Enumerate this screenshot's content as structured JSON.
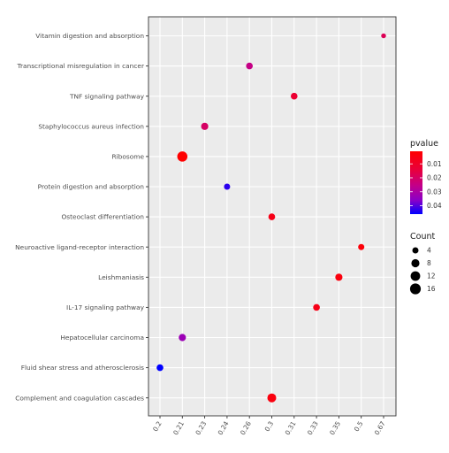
{
  "chart_data": {
    "type": "scatter",
    "title": "",
    "xlabel": "",
    "ylabel": "",
    "x_categories": [
      "0.2",
      "0.21",
      "0.23",
      "0.24",
      "0.26",
      "0.3",
      "0.31",
      "0.33",
      "0.35",
      "0.5",
      "0.67"
    ],
    "y_categories": [
      "Vitamin digestion and absorption",
      "Transcriptional misregulation in cancer",
      "TNF signaling pathway",
      "Staphylococcus aureus infection",
      "Ribosome",
      "Protein digestion and absorption",
      "Osteoclast differentiation",
      "Neuroactive ligand-receptor interaction",
      "Leishmaniasis",
      "IL-17 signaling pathway",
      "Hepatocellular carcinoma",
      "Fluid shear stress and atherosclerosis",
      "Complement and coagulation cascades"
    ],
    "points": [
      {
        "term": "Vitamin digestion and absorption",
        "x": "0.67",
        "count": 2,
        "pvalue": 0.018
      },
      {
        "term": "Transcriptional misregulation in cancer",
        "x": "0.26",
        "count": 5,
        "pvalue": 0.025
      },
      {
        "term": "TNF signaling pathway",
        "x": "0.31",
        "count": 5,
        "pvalue": 0.012
      },
      {
        "term": "Staphylococcus aureus infection",
        "x": "0.23",
        "count": 6,
        "pvalue": 0.02
      },
      {
        "term": "Ribosome",
        "x": "0.21",
        "count": 14,
        "pvalue": 0.001
      },
      {
        "term": "Protein digestion and absorption",
        "x": "0.24",
        "count": 4,
        "pvalue": 0.043
      },
      {
        "term": "Osteoclast differentiation",
        "x": "0.3",
        "count": 5,
        "pvalue": 0.006
      },
      {
        "term": "Neuroactive ligand-receptor interaction",
        "x": "0.5",
        "count": 4,
        "pvalue": 0.003
      },
      {
        "term": "Leishmaniasis",
        "x": "0.35",
        "count": 6,
        "pvalue": 0.004
      },
      {
        "term": "IL-17 signaling pathway",
        "x": "0.33",
        "count": 5,
        "pvalue": 0.006
      },
      {
        "term": "Hepatocellular carcinoma",
        "x": "0.21",
        "count": 6,
        "pvalue": 0.033
      },
      {
        "term": "Fluid shear stress and atherosclerosis",
        "x": "0.2",
        "count": 5,
        "pvalue": 0.046
      },
      {
        "term": "Complement and coagulation cascades",
        "x": "0.3",
        "count": 10,
        "pvalue": 0.004
      }
    ],
    "grid": true,
    "panel_background": "#ebebeb",
    "color_legend": {
      "title": "pvalue",
      "ticks": [
        "0.01",
        "0.02",
        "0.03",
        "0.04"
      ],
      "tick_values": [
        0.01,
        0.02,
        0.03,
        0.04
      ],
      "range": [
        0.001,
        0.046
      ],
      "low_color": "#ff0000",
      "high_color": "#0000ff"
    },
    "size_legend": {
      "title": "Count",
      "values": [
        4,
        8,
        12,
        16
      ],
      "labels": [
        "4",
        "8",
        "12",
        "16"
      ]
    },
    "legend_position": "right"
  }
}
